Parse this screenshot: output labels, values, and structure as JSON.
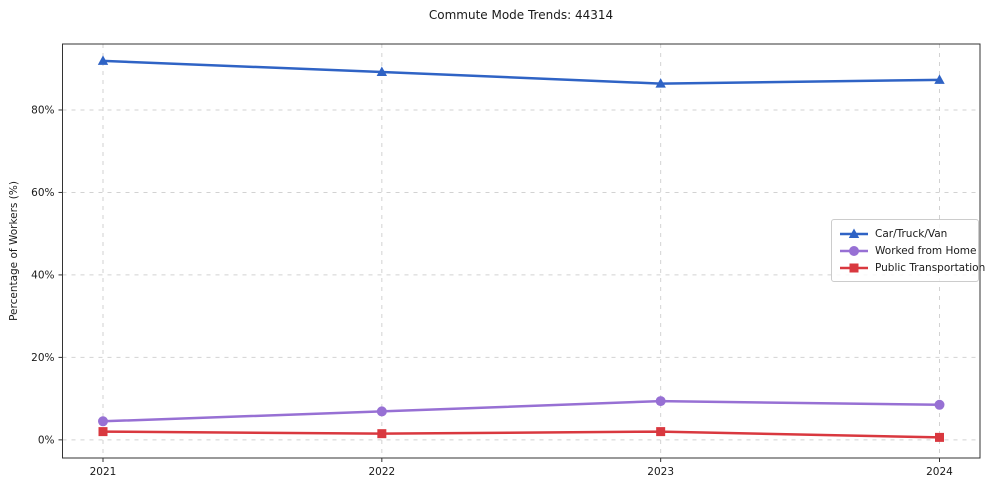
{
  "chart_data": {
    "type": "line",
    "title": "Commute Mode Trends: 44314",
    "xlabel": "",
    "ylabel": "Percentage of Workers (%)",
    "x": [
      2021,
      2022,
      2023,
      2024
    ],
    "xtick_labels": [
      "2021",
      "2022",
      "2023",
      "2024"
    ],
    "yticks": [
      0,
      20,
      40,
      60,
      80
    ],
    "ytick_labels": [
      "0%",
      "20%",
      "40%",
      "60%",
      "80%"
    ],
    "ylim": [
      -4.4,
      96.0
    ],
    "grid": true,
    "grid_style": "dashed",
    "legend_position": "center-right",
    "series": [
      {
        "name": "Car/Truck/Van",
        "marker": "triangle",
        "color": "#2f63c5",
        "values": [
          91.9,
          89.2,
          86.4,
          87.3
        ]
      },
      {
        "name": "Worked from Home",
        "marker": "circle",
        "color": "#9770d4",
        "values": [
          4.5,
          6.9,
          9.4,
          8.5
        ]
      },
      {
        "name": "Public Transportation",
        "marker": "square",
        "color": "#d9383f",
        "values": [
          2.0,
          1.5,
          2.0,
          0.6
        ]
      }
    ]
  },
  "colors": {
    "grid": "#d2d2d2",
    "spine": "#333333",
    "tick_text": "#1a1a1a",
    "background": "#ffffff"
  }
}
